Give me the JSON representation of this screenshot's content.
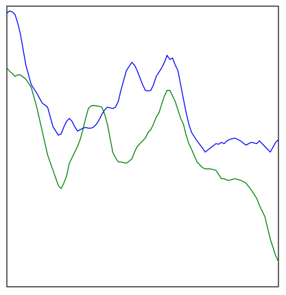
{
  "chart_data": {
    "type": "line",
    "title": "",
    "xlabel": "",
    "ylabel": "",
    "xlim": [
      0,
      100
    ],
    "ylim": [
      0,
      100
    ],
    "grid": false,
    "legend": "none",
    "ticks": "none",
    "x": [
      0,
      1,
      2,
      3,
      4,
      5,
      7,
      9,
      11,
      13,
      15,
      17,
      19,
      20,
      21,
      22,
      23,
      24,
      25,
      26,
      27,
      28,
      29,
      30,
      31,
      32,
      33,
      34,
      35,
      36,
      37,
      38,
      39,
      40,
      41,
      42,
      44,
      46,
      47,
      48,
      49,
      50,
      51,
      52,
      53,
      54,
      55,
      56,
      57,
      58,
      59,
      60,
      61,
      62,
      63,
      64,
      65,
      66,
      67,
      68,
      70,
      72,
      73,
      75,
      77,
      78,
      79,
      80,
      81,
      82,
      84,
      86,
      88,
      90,
      92,
      93,
      95,
      97,
      99,
      100
    ],
    "series": [
      {
        "color": "#0000ff",
        "values": [
          97.5,
          98.3,
          98.0,
          97.0,
          94.0,
          90.0,
          79.0,
          72.0,
          69.0,
          65.5,
          64.0,
          57.0,
          54.0,
          54.5,
          57.0,
          59.0,
          60.0,
          59.0,
          57.0,
          55.5,
          56.0,
          56.5,
          56.8,
          56.5,
          56.5,
          57.0,
          58.0,
          59.5,
          61.5,
          63.0,
          64.0,
          63.8,
          63.5,
          64.0,
          66.0,
          70.0,
          77.0,
          80.0,
          79.0,
          77.0,
          74.5,
          72.0,
          70.0,
          69.8,
          70.0,
          72.0,
          75.0,
          76.5,
          78.0,
          80.0,
          82.5,
          81.0,
          81.5,
          79.0,
          77.0,
          72.0,
          67.0,
          62.0,
          58.0,
          55.0,
          52.0,
          49.5,
          48.0,
          49.5,
          51.0,
          50.8,
          51.5,
          51.0,
          52.0,
          52.5,
          53.0,
          52.0,
          50.5,
          51.5,
          51.0,
          52.0,
          50.0,
          48.0,
          51.5,
          52.5
        ]
      },
      {
        "color": "#008000",
        "values": [
          78.0,
          76.8,
          76.0,
          75.0,
          75.5,
          75.5,
          74.0,
          71.0,
          64.0,
          55.5,
          47.0,
          41.5,
          36.0,
          35.0,
          37.0,
          39.5,
          44.0,
          46.0,
          48.0,
          50.0,
          52.5,
          56.0,
          60.0,
          63.5,
          64.5,
          64.6,
          64.5,
          64.3,
          64.0,
          61.5,
          58.0,
          53.0,
          48.0,
          46.0,
          44.5,
          44.5,
          44.0,
          45.5,
          48.0,
          50.0,
          51.0,
          52.0,
          53.0,
          55.0,
          56.0,
          58.0,
          60.5,
          62.0,
          65.0,
          68.0,
          70.0,
          70.0,
          68.0,
          66.0,
          63.0,
          60.0,
          58.0,
          54.0,
          51.0,
          49.0,
          44.5,
          42.5,
          42.0,
          42.0,
          41.5,
          40.0,
          38.5,
          38.5,
          38.0,
          38.0,
          38.5,
          38.0,
          37.0,
          34.5,
          31.5,
          29.0,
          25.0,
          17.0,
          11.0,
          9.0
        ]
      }
    ]
  }
}
